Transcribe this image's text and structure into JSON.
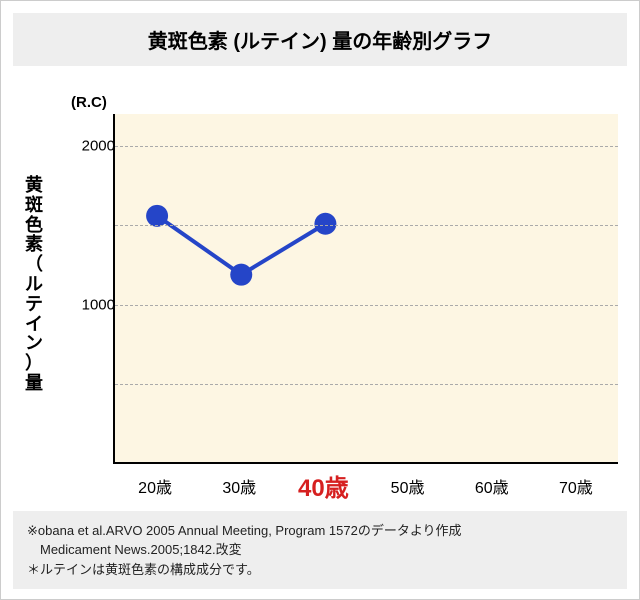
{
  "title": "黄斑色素 (ルテイン) 量の年齢別グラフ",
  "chart": {
    "type": "line",
    "unit_label": "(R.C)",
    "y_axis_label": "黄斑色素（ルテイン）量",
    "plot_bg": "#fdf6e3",
    "grid_color": "#aaaaaa",
    "axis_color": "#000000",
    "ylim": [
      0,
      2200
    ],
    "yticks": [
      1000,
      2000
    ],
    "gridlines_y": [
      500,
      1000,
      1500,
      2000
    ],
    "x_categories": [
      "20歳",
      "30歳",
      "40歳",
      "50歳",
      "60歳",
      "70歳"
    ],
    "x_emphasis_index": 2,
    "x_emphasis_color": "#d62020",
    "series": {
      "color": "#2545c8",
      "line_width": 4,
      "marker_radius": 11,
      "points": [
        {
          "xi": 0,
          "y": 1560
        },
        {
          "xi": 1,
          "y": 1190
        },
        {
          "xi": 2,
          "y": 1510
        }
      ]
    }
  },
  "footnote": {
    "line1": "※obana et al.ARVO 2005 Annual Meeting, Program 1572のデータより作成",
    "line2": "　Medicament News.2005;1842.改変",
    "line3": "＊ルテインは黄斑色素の構成成分です。"
  }
}
